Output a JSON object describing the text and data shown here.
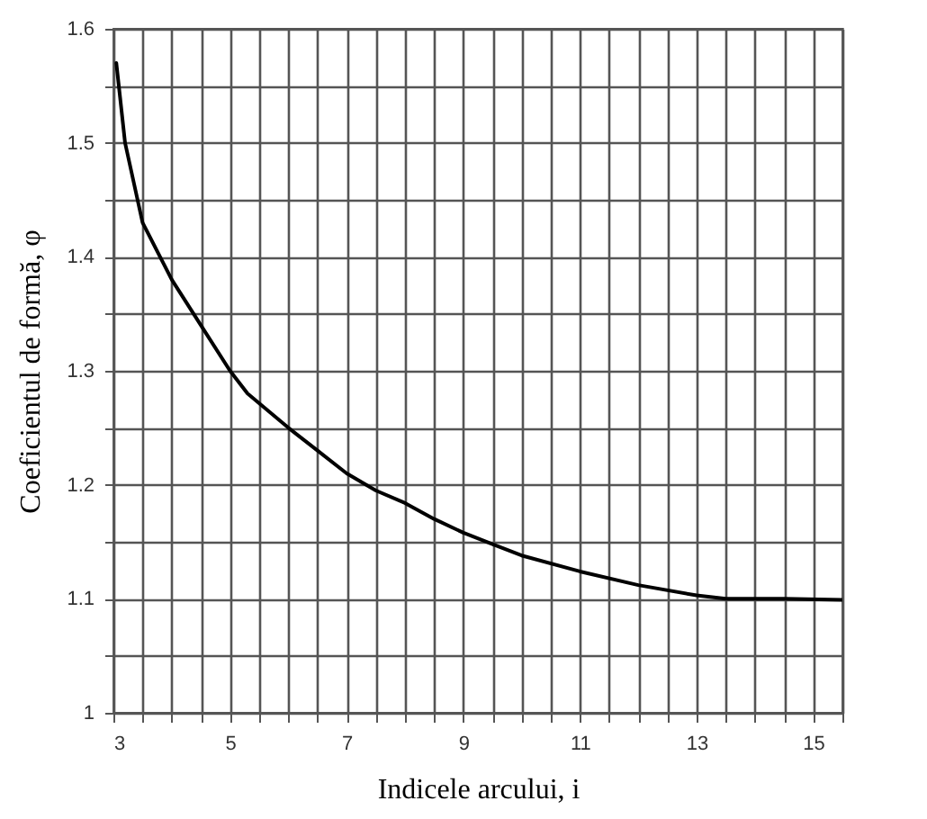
{
  "chart_data": {
    "type": "line",
    "xlabel": "Indicele arcului, i",
    "ylabel": "Coeficientul de formă, φ",
    "x": [
      3.05,
      3.2,
      3.5,
      4,
      4.5,
      5,
      5.3,
      6,
      6.5,
      7,
      7.5,
      8,
      8.5,
      9,
      9.5,
      10,
      11,
      12,
      13,
      13.5,
      14.5,
      15.5
    ],
    "series": [
      {
        "color": "#000000",
        "values": [
          1.57,
          1.5,
          1.43,
          1.38,
          1.34,
          1.3,
          1.28,
          1.25,
          1.23,
          1.21,
          1.195,
          1.184,
          1.17,
          1.158,
          1.148,
          1.138,
          1.124,
          1.112,
          1.103,
          1.1,
          1.1,
          1.099
        ]
      }
    ],
    "xlim": [
      3,
      15.5
    ],
    "ylim": [
      1,
      1.6
    ],
    "xticks": [
      3,
      {
        "value": 3.5,
        "label": null
      },
      {
        "value": 4,
        "label": null
      },
      {
        "value": 4.5,
        "label": null
      },
      5,
      {
        "value": 5.5,
        "label": null
      },
      {
        "value": 6,
        "label": null
      },
      {
        "value": 6.5,
        "label": null
      },
      7,
      {
        "value": 7.5,
        "label": null
      },
      {
        "value": 8,
        "label": null
      },
      {
        "value": 8.5,
        "label": null
      },
      9,
      {
        "value": 9.5,
        "label": null
      },
      {
        "value": 10,
        "label": null
      },
      {
        "value": 10.5,
        "label": null
      },
      11,
      {
        "value": 11.5,
        "label": null
      },
      {
        "value": 12,
        "label": null
      },
      {
        "value": 12.5,
        "label": null
      },
      13,
      {
        "value": 13.5,
        "label": null
      },
      {
        "value": 14,
        "label": null
      },
      {
        "value": 14.5,
        "label": null
      },
      15,
      {
        "value": 15.5,
        "label": null
      }
    ],
    "yticks": [
      1,
      {
        "value": 1.05,
        "label": null
      },
      1.1,
      {
        "value": 1.15,
        "label": null
      },
      1.2,
      {
        "value": 1.25,
        "label": null
      },
      1.3,
      {
        "value": 1.35,
        "label": null
      },
      1.4,
      {
        "value": 1.45,
        "label": null
      },
      1.5,
      {
        "value": 1.55,
        "label": null
      },
      1.6
    ],
    "grid": true,
    "marker": "none",
    "line_style": "solid"
  }
}
